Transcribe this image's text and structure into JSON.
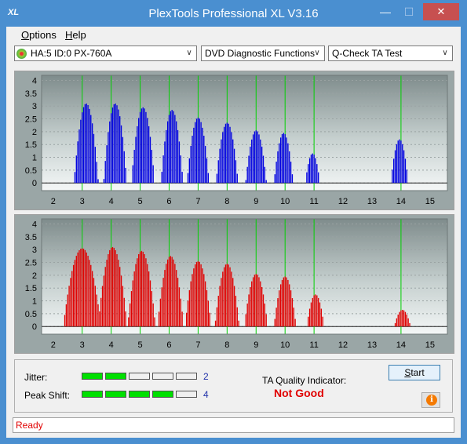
{
  "window": {
    "title": "PlexTools Professional XL V3.16",
    "icon_text": "XL",
    "min_glyph": "—",
    "max_glyph": "☐",
    "close_glyph": "✕"
  },
  "menu": {
    "options_first": "O",
    "options_rest": "ptions",
    "help_first": "H",
    "help_rest": "elp"
  },
  "toolbar": {
    "drive": "HA:5 ID:0  PX-760A",
    "function": "DVD Diagnostic Functions",
    "test": "Q-Check TA Test",
    "arrow_glyph": "∨"
  },
  "chart_data": [
    {
      "type": "bar",
      "title": "",
      "series": [
        {
          "name": "",
          "color": "#0000e0"
        }
      ],
      "x_ticks": [
        2,
        3,
        4,
        5,
        6,
        7,
        8,
        9,
        10,
        11,
        12,
        13,
        14,
        15
      ],
      "y_ticks": [
        0,
        0.5,
        1,
        1.5,
        2,
        2.5,
        3,
        3.5,
        4
      ],
      "xlim": [
        1.6,
        15.6
      ],
      "ylim": [
        -0.3,
        4.2
      ],
      "marker_lines": [
        3,
        4,
        5,
        6,
        7,
        8,
        9,
        10,
        11,
        14
      ],
      "peaks": [
        {
          "center": 3.14,
          "height": 3.1,
          "half_width": 0.42
        },
        {
          "center": 4.14,
          "height": 3.1,
          "half_width": 0.4
        },
        {
          "center": 5.1,
          "height": 2.95,
          "half_width": 0.4
        },
        {
          "center": 6.1,
          "height": 2.85,
          "half_width": 0.38
        },
        {
          "center": 7.0,
          "height": 2.55,
          "half_width": 0.38
        },
        {
          "center": 8.0,
          "height": 2.35,
          "half_width": 0.38
        },
        {
          "center": 9.0,
          "height": 2.05,
          "half_width": 0.36
        },
        {
          "center": 9.95,
          "height": 1.95,
          "half_width": 0.33
        },
        {
          "center": 10.95,
          "height": 1.15,
          "half_width": 0.25
        },
        {
          "center": 13.95,
          "height": 1.7,
          "half_width": 0.3
        }
      ]
    },
    {
      "type": "bar",
      "title": "",
      "series": [
        {
          "name": "",
          "color": "#e00000"
        }
      ],
      "x_ticks": [
        2,
        3,
        4,
        5,
        6,
        7,
        8,
        9,
        10,
        11,
        12,
        13,
        14,
        15
      ],
      "y_ticks": [
        0,
        0.5,
        1,
        1.5,
        2,
        2.5,
        3,
        3.5,
        4
      ],
      "xlim": [
        1.6,
        15.6
      ],
      "ylim": [
        -0.3,
        4.2
      ],
      "marker_lines": [
        3,
        4,
        5,
        6,
        7,
        8,
        9,
        10,
        11,
        14
      ],
      "peaks": [
        {
          "center": 3.0,
          "height": 3.05,
          "half_width": 0.65
        },
        {
          "center": 4.05,
          "height": 3.1,
          "half_width": 0.5
        },
        {
          "center": 5.05,
          "height": 2.95,
          "half_width": 0.48
        },
        {
          "center": 6.05,
          "height": 2.75,
          "half_width": 0.45
        },
        {
          "center": 7.0,
          "height": 2.55,
          "half_width": 0.45
        },
        {
          "center": 8.0,
          "height": 2.45,
          "half_width": 0.42
        },
        {
          "center": 9.0,
          "height": 2.05,
          "half_width": 0.4
        },
        {
          "center": 10.0,
          "height": 1.95,
          "half_width": 0.38
        },
        {
          "center": 11.05,
          "height": 1.25,
          "half_width": 0.3
        },
        {
          "center": 14.05,
          "height": 0.65,
          "half_width": 0.28
        }
      ]
    }
  ],
  "metrics": {
    "jitter_label": "Jitter:",
    "jitter_value": "2",
    "jitter_level": 2,
    "peak_label": "Peak Shift:",
    "peak_value": "4",
    "peak_level": 4,
    "segments": 5
  },
  "ta": {
    "label": "TA Quality Indicator:",
    "result": "Not Good"
  },
  "buttons": {
    "start_first": "S",
    "start_rest": "tart",
    "info_glyph": "i"
  },
  "status": {
    "text": "Ready"
  }
}
